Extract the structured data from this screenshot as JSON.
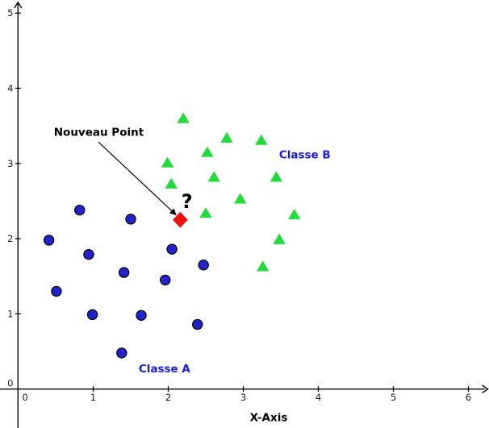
{
  "figure": {
    "background": "#ffffff"
  },
  "chart_data": {
    "type": "scatter",
    "title": "",
    "xlabel": "X-Axis",
    "ylabel": "",
    "xlim": [
      0,
      6.25
    ],
    "ylim": [
      0,
      5.2
    ],
    "x_ticks": [
      0,
      1,
      2,
      3,
      4,
      5,
      6
    ],
    "y_ticks": [
      0,
      1,
      2,
      3,
      4,
      5
    ],
    "grid": false,
    "legend_position": "none",
    "series": [
      {
        "name": "Classe A",
        "marker": "circle",
        "color": "#2222cc",
        "stroke": "#000000",
        "points": [
          [
            0.82,
            2.38
          ],
          [
            1.5,
            2.26
          ],
          [
            0.41,
            1.98
          ],
          [
            0.94,
            1.79
          ],
          [
            1.41,
            1.55
          ],
          [
            2.05,
            1.86
          ],
          [
            1.96,
            1.45
          ],
          [
            0.51,
            1.3
          ],
          [
            0.99,
            0.99
          ],
          [
            1.64,
            0.98
          ],
          [
            2.47,
            1.65
          ],
          [
            2.39,
            0.86
          ],
          [
            1.38,
            0.48
          ]
        ]
      },
      {
        "name": "Classe B",
        "marker": "triangle",
        "color": "#22dc3c",
        "stroke": "#22dc3c",
        "points": [
          [
            2.2,
            3.6
          ],
          [
            2.78,
            3.34
          ],
          [
            3.24,
            3.31
          ],
          [
            2.52,
            3.15
          ],
          [
            1.99,
            3.01
          ],
          [
            2.61,
            2.82
          ],
          [
            3.44,
            2.82
          ],
          [
            2.04,
            2.73
          ],
          [
            2.96,
            2.53
          ],
          [
            2.5,
            2.34
          ],
          [
            3.68,
            2.32
          ],
          [
            3.48,
            1.99
          ],
          [
            3.26,
            1.63
          ]
        ]
      },
      {
        "name": "Nouveau Point",
        "marker": "diamond",
        "color": "#ee1111",
        "stroke": "#ee1111",
        "points": [
          [
            2.16,
            2.25
          ]
        ]
      }
    ],
    "annotations": {
      "nouveau_point_label": {
        "text": "Nouveau Point",
        "x": 1.075,
        "y": 3.37
      },
      "question_mark": {
        "text": "?",
        "x": 2.25,
        "y": 2.41
      },
      "classe_a_label": {
        "text": "Classe A",
        "x": 1.95,
        "y": 0.22
      },
      "classe_b_label": {
        "text": "Classe B",
        "x": 3.82,
        "y": 3.07
      },
      "arrow": {
        "from": [
          1.07,
          3.285
        ],
        "to": [
          2.1,
          2.32
        ]
      }
    },
    "colors": {
      "classe_a": "#2222cc",
      "classe_b": "#22dc3c",
      "new_point": "#ee1111",
      "class_label_text": "#1a1ae6",
      "annotation_text": "#000000",
      "axis": "#000000",
      "tick_text": "#1a1a1a"
    }
  }
}
